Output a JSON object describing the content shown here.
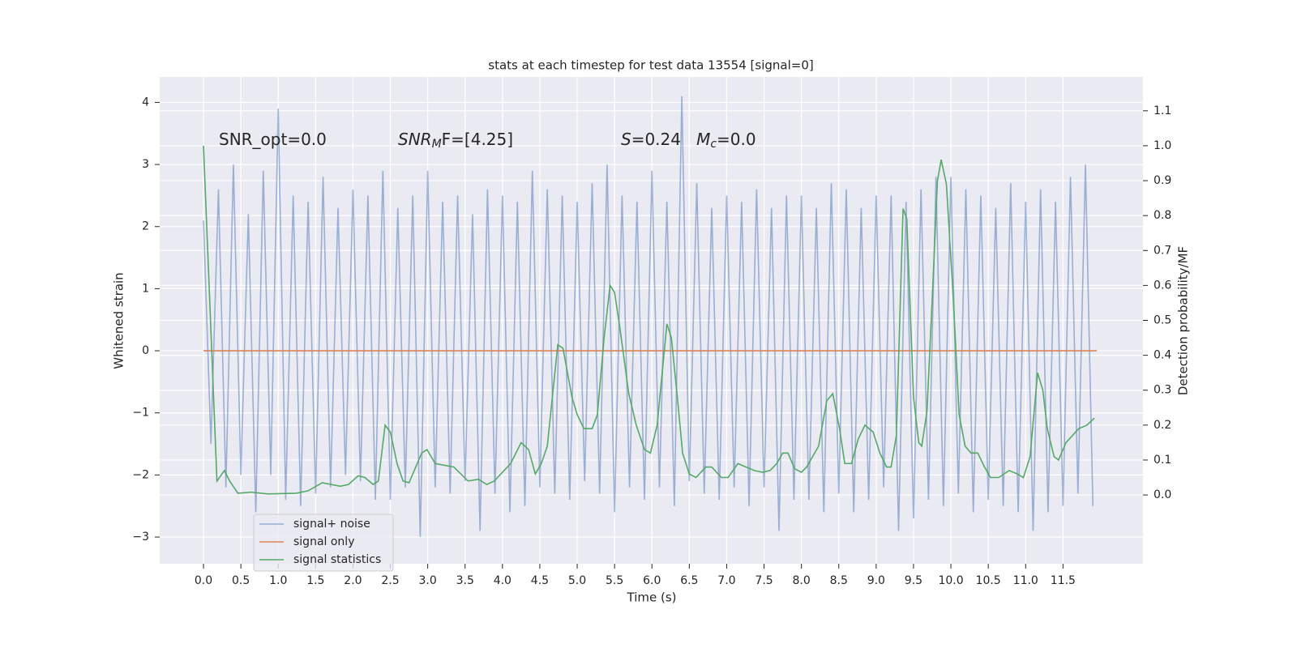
{
  "chart_data": {
    "type": "line",
    "title": "stats at each timestep for test data 13554 [signal=0]",
    "xlabel": "Time (s)",
    "ylabel": "Whitened strain",
    "y2label": "Detection probability/MF",
    "grid": true,
    "legend": "lower left",
    "xlim": [
      -0.586,
      12.57
    ],
    "ylim": [
      -3.43,
      4.41
    ],
    "y2lim": [
      -0.197,
      1.197
    ],
    "xticks": [
      {
        "value": 0,
        "label": "0.0"
      },
      {
        "value": 0.5,
        "label": "0.5"
      },
      {
        "value": 1,
        "label": "1.0"
      },
      {
        "value": 1.5,
        "label": "1.5"
      },
      {
        "value": 2,
        "label": "2.0"
      },
      {
        "value": 2.5,
        "label": "2.5"
      },
      {
        "value": 3,
        "label": "3.0"
      },
      {
        "value": 3.5,
        "label": "3.5"
      },
      {
        "value": 4,
        "label": "4.0"
      },
      {
        "value": 4.5,
        "label": "4.5"
      },
      {
        "value": 5,
        "label": "5.0"
      },
      {
        "value": 5.5,
        "label": "5.5"
      },
      {
        "value": 6,
        "label": "6.0"
      },
      {
        "value": 6.5,
        "label": "6.5"
      },
      {
        "value": 7,
        "label": "7.0"
      },
      {
        "value": 7.5,
        "label": "7.5"
      },
      {
        "value": 8,
        "label": "8.0"
      },
      {
        "value": 8.5,
        "label": "8.5"
      },
      {
        "value": 9,
        "label": "9.0"
      },
      {
        "value": 9.5,
        "label": "9.5"
      },
      {
        "value": 10,
        "label": "10.0"
      },
      {
        "value": 10.5,
        "label": "10.5"
      },
      {
        "value": 11,
        "label": "11.0"
      },
      {
        "value": 11.5,
        "label": "11.5"
      }
    ],
    "yticks": [
      {
        "value": -3,
        "label": "−3"
      },
      {
        "value": -2,
        "label": "−2"
      },
      {
        "value": -1,
        "label": "−1"
      },
      0,
      1,
      2,
      3,
      4
    ],
    "y2ticks": [
      {
        "value": 0,
        "label": "0.0"
      },
      {
        "value": 0.1,
        "label": "0.1"
      },
      {
        "value": 0.2,
        "label": "0.2"
      },
      {
        "value": 0.3,
        "label": "0.3"
      },
      {
        "value": 0.4,
        "label": "0.4"
      },
      {
        "value": 0.5,
        "label": "0.5"
      },
      {
        "value": 0.6,
        "label": "0.6"
      },
      {
        "value": 0.7,
        "label": "0.7"
      },
      {
        "value": 0.8,
        "label": "0.8"
      },
      {
        "value": 0.9,
        "label": "0.9"
      },
      {
        "value": 1,
        "label": "1.0"
      },
      {
        "value": 1.1,
        "label": "1.1"
      }
    ],
    "annotations": [
      {
        "parts": [
          {
            "text": "SNR_opt=0.0"
          }
        ]
      },
      {
        "parts": [
          {
            "text": "SNR",
            "italic": true
          },
          {
            "text": "M",
            "italic": true,
            "sub": true
          },
          {
            "text": "F=[4.25]"
          }
        ]
      },
      {
        "parts": [
          {
            "text": "S",
            "italic": true
          },
          {
            "text": "=0.24   "
          },
          {
            "text": "M",
            "italic": true
          },
          {
            "text": "c",
            "italic": true,
            "sub": true
          },
          {
            "text": "=0.0"
          }
        ]
      }
    ],
    "series": [
      {
        "name": "signal+ noise",
        "color": "#4c72b0",
        "opacity": 0.5,
        "x": [
          0,
          0.1,
          0.2,
          0.3,
          0.4,
          0.5,
          0.6,
          0.7,
          0.8,
          0.9,
          1,
          1.1,
          1.2,
          1.3,
          1.4,
          1.5,
          1.6,
          1.7,
          1.8,
          1.9,
          2,
          2.1,
          2.2,
          2.3,
          2.4,
          2.5,
          2.6,
          2.7,
          2.8,
          2.9,
          3,
          3.1,
          3.2,
          3.3,
          3.4,
          3.5,
          3.6,
          3.7,
          3.8,
          3.9,
          4,
          4.1,
          4.2,
          4.3,
          4.4,
          4.5,
          4.6,
          4.7,
          4.8,
          4.9,
          5,
          5.1,
          5.2,
          5.3,
          5.4,
          5.5,
          5.6,
          5.7,
          5.8,
          5.9,
          6,
          6.1,
          6.2,
          6.3,
          6.4,
          6.5,
          6.6,
          6.7,
          6.8,
          6.9,
          7,
          7.1,
          7.2,
          7.3,
          7.4,
          7.5,
          7.6,
          7.7,
          7.8,
          7.9,
          8,
          8.1,
          8.2,
          8.3,
          8.4,
          8.5,
          8.6,
          8.7,
          8.8,
          8.9,
          9,
          9.1,
          9.2,
          9.3,
          9.4,
          9.5,
          9.6,
          9.7,
          9.8,
          9.9,
          10,
          10.1,
          10.2,
          10.3,
          10.4,
          10.5,
          10.6,
          10.7,
          10.8,
          10.9,
          11,
          11.1,
          11.2,
          11.3,
          11.4,
          11.5,
          11.6,
          11.7,
          11.8,
          11.9
        ],
        "values": [
          2.1,
          -1.5,
          2.6,
          -2.2,
          3.0,
          -2.0,
          2.2,
          -2.6,
          2.9,
          -2.0,
          3.9,
          -2.4,
          2.5,
          -2.5,
          2.4,
          -2.3,
          2.8,
          -2.2,
          2.3,
          -2.0,
          2.6,
          -2.1,
          2.5,
          -2.4,
          2.9,
          -2.4,
          2.3,
          -2.2,
          2.5,
          -3.0,
          2.9,
          -2.2,
          2.4,
          -2.3,
          2.5,
          -2.1,
          2.2,
          -2.9,
          2.6,
          -2.3,
          2.5,
          -2.6,
          2.4,
          -2.5,
          2.9,
          -2.2,
          2.6,
          -2.3,
          2.5,
          -2.4,
          2.4,
          -2.1,
          2.7,
          -2.3,
          3.0,
          -2.6,
          2.5,
          -2.2,
          2.4,
          -2.4,
          2.9,
          -2.2,
          2.4,
          -2.5,
          4.1,
          -2.1,
          2.7,
          -2.3,
          2.3,
          -2.4,
          2.5,
          -2.2,
          2.4,
          -2.5,
          2.6,
          -2.2,
          2.3,
          -2.9,
          2.5,
          -2.4,
          2.5,
          -2.4,
          2.3,
          -2.6,
          2.7,
          -2.3,
          2.6,
          -2.6,
          2.3,
          -2.4,
          2.5,
          -2.2,
          2.5,
          -2.9,
          2.4,
          -2.7,
          2.6,
          -2.4,
          2.8,
          -2.5,
          2.8,
          -2.3,
          2.6,
          -2.6,
          2.5,
          -2.4,
          2.3,
          -2.5,
          2.7,
          -2.6,
          2.4,
          -2.9,
          2.6,
          -2.6,
          2.4,
          -2.5,
          2.8,
          -2.3,
          3.0,
          -2.5
        ]
      },
      {
        "name": "signal only",
        "color": "#dd8452",
        "x": [
          0,
          11.95
        ],
        "values": [
          0,
          0
        ]
      },
      {
        "name": "signal statistics",
        "color": "#55a868",
        "axis": "y2",
        "x": [
          0,
          0.18,
          0.28,
          0.35,
          0.46,
          0.64,
          0.86,
          1.08,
          1.24,
          1.4,
          1.59,
          1.83,
          1.94,
          2.07,
          2.16,
          2.27,
          2.34,
          2.43,
          2.5,
          2.59,
          2.67,
          2.75,
          2.92,
          2.99,
          3.1,
          3.35,
          3.54,
          3.68,
          3.79,
          3.89,
          4.11,
          4.25,
          4.35,
          4.44,
          4.52,
          4.6,
          4.74,
          4.81,
          4.93,
          5.0,
          5.09,
          5.2,
          5.27,
          5.36,
          5.44,
          5.5,
          5.57,
          5.69,
          5.79,
          5.9,
          5.98,
          6.07,
          6.2,
          6.26,
          6.34,
          6.41,
          6.5,
          6.59,
          6.72,
          6.8,
          6.93,
          7.02,
          7.15,
          7.26,
          7.37,
          7.48,
          7.58,
          7.67,
          7.75,
          7.82,
          7.91,
          8.0,
          8.07,
          8.23,
          8.34,
          8.42,
          8.51,
          8.58,
          8.67,
          8.76,
          8.85,
          8.96,
          9.05,
          9.14,
          9.2,
          9.27,
          9.36,
          9.41,
          9.5,
          9.57,
          9.61,
          9.68,
          9.75,
          9.82,
          9.87,
          9.94,
          10.03,
          10.11,
          10.19,
          10.27,
          10.36,
          10.45,
          10.53,
          10.64,
          10.78,
          10.89,
          10.97,
          11.06,
          11.16,
          11.23,
          11.29,
          11.38,
          11.44,
          11.54,
          11.71,
          11.82,
          11.92
        ],
        "values": [
          1.0,
          0.04,
          0.07,
          0.04,
          0.005,
          0.008,
          0.003,
          0.004,
          0.005,
          0.012,
          0.035,
          0.025,
          0.03,
          0.055,
          0.05,
          0.03,
          0.04,
          0.2,
          0.18,
          0.09,
          0.04,
          0.035,
          0.12,
          0.13,
          0.09,
          0.08,
          0.04,
          0.045,
          0.03,
          0.04,
          0.09,
          0.15,
          0.13,
          0.06,
          0.09,
          0.14,
          0.43,
          0.42,
          0.28,
          0.23,
          0.19,
          0.19,
          0.23,
          0.45,
          0.6,
          0.58,
          0.48,
          0.29,
          0.2,
          0.13,
          0.12,
          0.2,
          0.49,
          0.45,
          0.28,
          0.12,
          0.06,
          0.05,
          0.08,
          0.08,
          0.05,
          0.05,
          0.09,
          0.08,
          0.07,
          0.065,
          0.07,
          0.09,
          0.12,
          0.12,
          0.075,
          0.065,
          0.08,
          0.14,
          0.27,
          0.29,
          0.19,
          0.09,
          0.09,
          0.16,
          0.2,
          0.18,
          0.12,
          0.08,
          0.08,
          0.17,
          0.82,
          0.79,
          0.28,
          0.15,
          0.14,
          0.24,
          0.56,
          0.9,
          0.96,
          0.89,
          0.57,
          0.23,
          0.14,
          0.12,
          0.12,
          0.08,
          0.05,
          0.05,
          0.07,
          0.06,
          0.05,
          0.11,
          0.35,
          0.3,
          0.19,
          0.11,
          0.1,
          0.15,
          0.19,
          0.2,
          0.22
        ]
      }
    ]
  }
}
